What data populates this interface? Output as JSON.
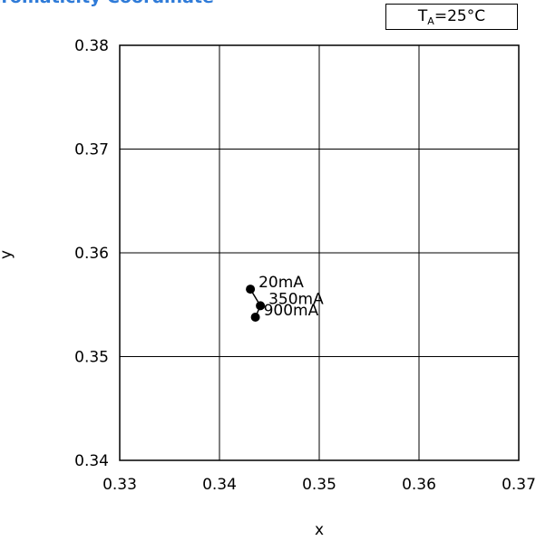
{
  "chart_data": {
    "type": "scatter",
    "title": "hromaticity Coordinate",
    "condition_box": {
      "label_main": "T",
      "label_sub": "A",
      "label_rest": "=25°C"
    },
    "xlabel": "x",
    "ylabel": "y",
    "xlim": [
      0.33,
      0.37
    ],
    "ylim": [
      0.34,
      0.38
    ],
    "x_ticks": [
      "0.33",
      "0.34",
      "0.35",
      "0.36",
      "0.37"
    ],
    "y_ticks": [
      "0.34",
      "0.35",
      "0.36",
      "0.37",
      "0.38"
    ],
    "grid": true,
    "points": [
      {
        "label": "20mA",
        "x": 0.3431,
        "y": 0.3565
      },
      {
        "label": "350mA",
        "x": 0.3441,
        "y": 0.3549
      },
      {
        "label": "900mA",
        "x": 0.3436,
        "y": 0.3538
      }
    ],
    "colors": {
      "title": "#2f7bd8",
      "marker": "#000000",
      "grid": "#000000"
    }
  }
}
